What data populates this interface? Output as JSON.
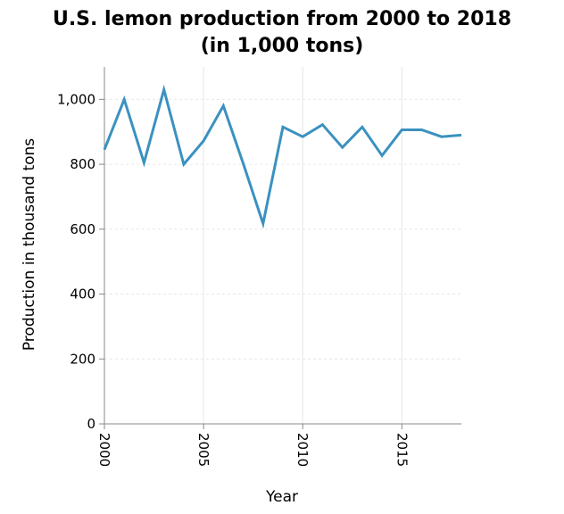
{
  "chart_data": {
    "type": "line",
    "title": [
      "U.S. lemon production from 2000 to 2018",
      "(in 1,000 tons)"
    ],
    "xlabel": "Year",
    "ylabel": "Production in thousand tons",
    "xlim": [
      2000,
      2018
    ],
    "ylim": [
      0,
      1100
    ],
    "x_ticks": [
      2000,
      2005,
      2010,
      2015
    ],
    "y_ticks": [
      0,
      200,
      400,
      600,
      800,
      1000
    ],
    "x_tick_labels": [
      "2000",
      "2005",
      "2010",
      "2015"
    ],
    "y_tick_labels": [
      "0",
      "200",
      "400",
      "600",
      "800",
      "1,000"
    ],
    "grid": true,
    "color": "#3b91c0",
    "x": [
      2000,
      2001,
      2002,
      2003,
      2004,
      2005,
      2006,
      2007,
      2008,
      2009,
      2010,
      2011,
      2012,
      2013,
      2014,
      2015,
      2016,
      2017,
      2018
    ],
    "y": [
      845,
      1000,
      805,
      1030,
      800,
      872,
      980,
      802,
      617,
      915,
      885,
      922,
      852,
      915,
      827,
      906,
      906,
      885,
      890
    ]
  }
}
